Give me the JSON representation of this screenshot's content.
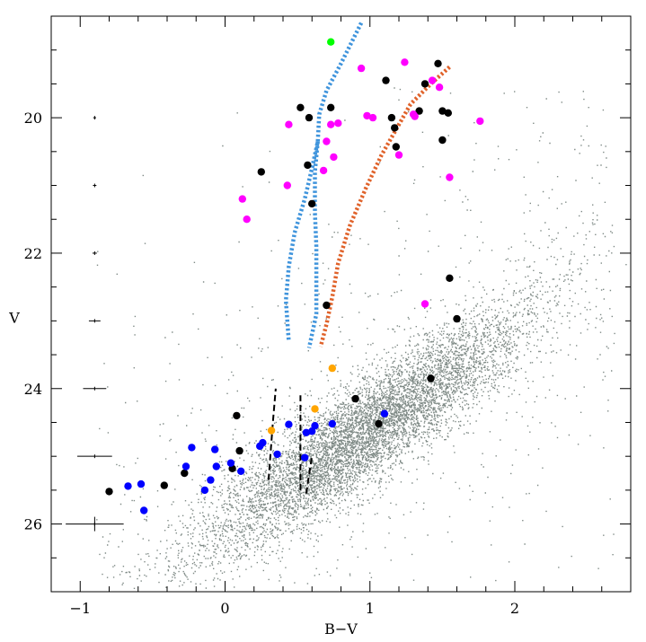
{
  "chart_data": {
    "type": "scatter",
    "title": "",
    "xlabel": "B−V",
    "ylabel": "V",
    "xlim": [
      -1.2,
      2.8
    ],
    "ylim": [
      27.0,
      18.5
    ],
    "y_inverted": true,
    "grid": false,
    "legend": "none",
    "xticks": [
      -1,
      0,
      1,
      2
    ],
    "xtick_labels": [
      "−1",
      "0",
      "1",
      "2"
    ],
    "yticks": [
      20,
      22,
      24,
      26
    ],
    "ytick_labels": [
      "20",
      "22",
      "24",
      "26"
    ],
    "field_population": {
      "description_color": "#7f8a86",
      "core": [
        1.0,
        24.6
      ],
      "extent": "dense grey cloud of field stars spanning B−V −0.9..2.7, V 19..27"
    },
    "series": [
      {
        "name": "",
        "role": "black",
        "color": "#000000",
        "points": [
          [
            1.47,
            19.2
          ],
          [
            1.38,
            19.5
          ],
          [
            1.11,
            19.45
          ],
          [
            0.52,
            19.85
          ],
          [
            0.73,
            19.85
          ],
          [
            0.58,
            20.0
          ],
          [
            1.15,
            20.0
          ],
          [
            1.34,
            19.9
          ],
          [
            1.5,
            19.9
          ],
          [
            1.54,
            19.93
          ],
          [
            1.17,
            20.15
          ],
          [
            1.5,
            20.33
          ],
          [
            1.18,
            20.43
          ],
          [
            0.25,
            20.8
          ],
          [
            0.57,
            20.7
          ],
          [
            0.6,
            21.27
          ],
          [
            1.55,
            22.37
          ],
          [
            0.7,
            22.77
          ],
          [
            1.6,
            22.97
          ],
          [
            1.42,
            23.85
          ],
          [
            0.9,
            24.15
          ],
          [
            0.08,
            24.4
          ],
          [
            1.06,
            24.52
          ],
          [
            0.1,
            24.92
          ],
          [
            0.05,
            25.18
          ],
          [
            -0.28,
            25.25
          ],
          [
            -0.42,
            25.43
          ],
          [
            -0.8,
            25.52
          ]
        ]
      },
      {
        "name": "",
        "role": "magenta",
        "color": "#ff00ff",
        "points": [
          [
            0.94,
            19.27
          ],
          [
            1.24,
            19.18
          ],
          [
            1.43,
            19.45
          ],
          [
            1.48,
            19.55
          ],
          [
            0.44,
            20.1
          ],
          [
            0.73,
            20.1
          ],
          [
            0.78,
            20.08
          ],
          [
            0.98,
            19.97
          ],
          [
            1.02,
            20.0
          ],
          [
            1.3,
            19.95
          ],
          [
            1.31,
            19.98
          ],
          [
            1.76,
            20.05
          ],
          [
            0.7,
            20.35
          ],
          [
            0.75,
            20.58
          ],
          [
            1.2,
            20.55
          ],
          [
            0.68,
            20.78
          ],
          [
            0.43,
            21.0
          ],
          [
            1.55,
            20.88
          ],
          [
            0.12,
            21.2
          ],
          [
            0.15,
            21.5
          ],
          [
            1.38,
            22.75
          ]
        ]
      },
      {
        "name": "",
        "role": "green",
        "color": "#00ff00",
        "points": [
          [
            0.73,
            18.88
          ]
        ]
      },
      {
        "name": "",
        "role": "orange",
        "color": "#ffa500",
        "points": [
          [
            0.74,
            23.7
          ],
          [
            0.62,
            24.3
          ],
          [
            0.32,
            24.62
          ]
        ]
      },
      {
        "name": "",
        "role": "blue",
        "color": "#0000ff",
        "points": [
          [
            1.1,
            24.37
          ],
          [
            0.44,
            24.53
          ],
          [
            0.62,
            24.55
          ],
          [
            0.74,
            24.52
          ],
          [
            0.56,
            24.65
          ],
          [
            0.6,
            24.63
          ],
          [
            0.24,
            24.85
          ],
          [
            0.26,
            24.8
          ],
          [
            0.36,
            24.97
          ],
          [
            0.55,
            25.02
          ],
          [
            -0.23,
            24.87
          ],
          [
            -0.07,
            24.9
          ],
          [
            0.04,
            25.1
          ],
          [
            -0.06,
            25.15
          ],
          [
            -0.27,
            25.15
          ],
          [
            0.11,
            25.22
          ],
          [
            -0.1,
            25.35
          ],
          [
            -0.14,
            25.5
          ],
          [
            -0.58,
            25.41
          ],
          [
            -0.67,
            25.44
          ],
          [
            -0.56,
            25.8
          ]
        ]
      }
    ],
    "curves": [
      {
        "name": "",
        "role": "blue dotted track",
        "color": "#3f94dc",
        "style": "dotted",
        "points": [
          [
            0.94,
            18.6
          ],
          [
            0.8,
            19.2
          ],
          [
            0.7,
            19.6
          ],
          [
            0.65,
            19.95
          ],
          [
            0.64,
            20.35
          ],
          [
            0.6,
            20.75
          ],
          [
            0.55,
            21.2
          ],
          [
            0.48,
            21.7
          ],
          [
            0.44,
            22.2
          ],
          [
            0.42,
            22.7
          ],
          [
            0.44,
            23.3
          ]
        ]
      },
      {
        "name": "",
        "role": "blue dotted track return",
        "color": "#3f94dc",
        "style": "dotted",
        "points": [
          [
            0.64,
            20.35
          ],
          [
            0.62,
            20.8
          ],
          [
            0.62,
            21.4
          ],
          [
            0.63,
            21.9
          ],
          [
            0.63,
            22.4
          ],
          [
            0.63,
            22.9
          ],
          [
            0.58,
            23.4
          ]
        ]
      },
      {
        "name": "",
        "role": "orange dotted track",
        "color": "#e0622a",
        "style": "dotted",
        "points": [
          [
            1.55,
            19.25
          ],
          [
            1.42,
            19.5
          ],
          [
            1.28,
            19.8
          ],
          [
            1.2,
            20.1
          ],
          [
            1.08,
            20.55
          ],
          [
            0.97,
            21.05
          ],
          [
            0.86,
            21.6
          ],
          [
            0.78,
            22.15
          ],
          [
            0.74,
            22.65
          ],
          [
            0.7,
            23.05
          ],
          [
            0.66,
            23.38
          ]
        ]
      }
    ],
    "dashed_segments": [
      [
        [
          0.3,
          25.35
        ],
        [
          0.33,
          24.5
        ],
        [
          0.35,
          24.0
        ]
      ],
      [
        [
          0.52,
          25.5
        ],
        [
          0.52,
          24.8
        ],
        [
          0.52,
          24.1
        ]
      ],
      [
        [
          0.56,
          25.55
        ],
        [
          0.6,
          25.0
        ]
      ]
    ],
    "error_bars": [
      {
        "y": 20.0,
        "xerr": 0.01
      },
      {
        "y": 21.0,
        "xerr": 0.012
      },
      {
        "y": 22.0,
        "xerr": 0.015
      },
      {
        "y": 23.0,
        "xerr": 0.04
      },
      {
        "y": 24.0,
        "xerr": 0.08
      },
      {
        "y": 25.0,
        "xerr": 0.12
      },
      {
        "y": 26.0,
        "xerr": 0.2
      }
    ]
  }
}
